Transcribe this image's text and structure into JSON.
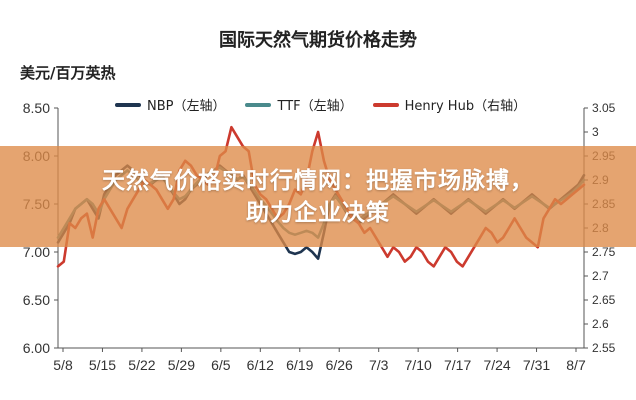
{
  "chart_data": {
    "type": "line",
    "title": "国际天然气期货价格走势",
    "ylabel": "美元/百万英热",
    "x_ticks": [
      "5/8",
      "5/15",
      "5/22",
      "5/29",
      "6/5",
      "6/12",
      "6/19",
      "6/26",
      "7/3",
      "7/10",
      "7/17",
      "7/24",
      "7/31",
      "8/7"
    ],
    "ylim_left": [
      6.0,
      8.5
    ],
    "ylim_right": [
      2.55,
      3.05
    ],
    "y_ticks_left": [
      "8.50",
      "8.00",
      "7.50",
      "7.00",
      "6.50",
      "6.00"
    ],
    "y_ticks_right": [
      "3.05",
      "3",
      "2.95",
      "2.9",
      "2.85",
      "2.8",
      "2.75",
      "2.7",
      "2.65",
      "2.6",
      "2.55"
    ],
    "grid": false,
    "legend_position": "top",
    "series": [
      {
        "name": "NBP（左轴）",
        "axis": "left",
        "color": "#1f3550",
        "x": [
          0,
          1,
          2,
          3,
          4,
          5,
          6,
          7,
          8,
          9,
          10,
          11,
          12,
          13,
          14,
          15,
          16,
          17,
          18,
          19,
          20,
          21,
          22,
          23,
          24,
          25,
          26,
          27,
          28,
          29,
          30,
          31,
          32,
          33,
          34,
          35,
          36,
          37,
          38,
          39,
          40,
          41,
          42,
          43,
          44,
          45,
          46,
          47,
          48,
          49,
          50,
          51,
          52,
          53,
          54,
          55,
          56,
          57,
          58,
          59,
          60,
          61,
          62,
          63,
          64,
          65,
          66,
          67,
          68,
          69,
          70,
          71,
          72,
          73,
          74,
          75,
          76,
          77,
          78,
          79,
          80,
          81,
          82,
          83,
          84,
          85,
          86,
          87,
          88,
          89,
          90,
          91
        ],
        "values": [
          7.1,
          7.2,
          7.3,
          7.45,
          7.5,
          7.55,
          7.45,
          7.35,
          7.6,
          7.7,
          7.8,
          7.85,
          7.9,
          7.85,
          7.8,
          7.75,
          7.7,
          7.75,
          7.8,
          7.7,
          7.6,
          7.5,
          7.55,
          7.65,
          7.7,
          7.75,
          7.8,
          7.85,
          7.9,
          7.85,
          7.8,
          7.75,
          7.8,
          7.7,
          7.6,
          7.5,
          7.4,
          7.3,
          7.2,
          7.1,
          7.0,
          6.98,
          7.0,
          7.05,
          7.0,
          6.93,
          7.2,
          7.5,
          7.6,
          7.5,
          7.4,
          7.35,
          7.3,
          7.35,
          7.4,
          7.45,
          7.5,
          7.55,
          7.6,
          7.55,
          7.5,
          7.45,
          7.4,
          7.45,
          7.5,
          7.55,
          7.5,
          7.45,
          7.4,
          7.45,
          7.5,
          7.55,
          7.5,
          7.45,
          7.4,
          7.45,
          7.5,
          7.55,
          7.5,
          7.45,
          7.5,
          7.55,
          7.6,
          7.55,
          7.5,
          7.45,
          7.5,
          7.55,
          7.6,
          7.65,
          7.7,
          7.8
        ]
      },
      {
        "name": "TTF（左轴）",
        "axis": "left",
        "color": "#4a8a8c",
        "x": [
          0,
          1,
          2,
          3,
          4,
          5,
          6,
          7,
          8,
          9,
          10,
          11,
          12,
          13,
          14,
          15,
          16,
          17,
          18,
          19,
          20,
          21,
          22,
          23,
          24,
          25,
          26,
          27,
          28,
          29,
          30,
          31,
          32,
          33,
          34,
          35,
          36,
          37,
          38,
          39,
          40,
          41,
          42,
          43,
          44,
          45,
          46,
          47,
          48,
          49,
          50,
          51,
          52,
          53,
          54,
          55,
          56,
          57,
          58,
          59,
          60,
          61,
          62,
          63,
          64,
          65,
          66,
          67,
          68,
          69,
          70,
          71,
          72,
          73,
          74,
          75,
          76,
          77,
          78,
          79,
          80,
          81,
          82,
          83,
          84,
          85,
          86,
          87,
          88,
          89,
          90,
          91
        ],
        "values": [
          7.15,
          7.25,
          7.35,
          7.45,
          7.5,
          7.55,
          7.5,
          7.4,
          7.55,
          7.65,
          7.75,
          7.8,
          7.85,
          7.8,
          7.75,
          7.7,
          7.72,
          7.75,
          7.78,
          7.7,
          7.62,
          7.55,
          7.58,
          7.65,
          7.72,
          7.78,
          7.82,
          7.85,
          7.88,
          7.84,
          7.8,
          7.76,
          7.78,
          7.72,
          7.64,
          7.55,
          7.48,
          7.4,
          7.32,
          7.25,
          7.2,
          7.18,
          7.2,
          7.22,
          7.2,
          7.15,
          7.3,
          7.5,
          7.58,
          7.5,
          7.42,
          7.38,
          7.34,
          7.38,
          7.42,
          7.46,
          7.5,
          7.54,
          7.58,
          7.54,
          7.5,
          7.46,
          7.42,
          7.46,
          7.5,
          7.54,
          7.5,
          7.46,
          7.42,
          7.46,
          7.5,
          7.54,
          7.5,
          7.46,
          7.42,
          7.46,
          7.5,
          7.54,
          7.5,
          7.46,
          7.5,
          7.54,
          7.58,
          7.54,
          7.5,
          7.46,
          7.5,
          7.54,
          7.58,
          7.62,
          7.68,
          7.75
        ]
      },
      {
        "name": "Henry Hub（右轴）",
        "axis": "right",
        "color": "#cc3a2e",
        "x": [
          0,
          1,
          2,
          3,
          4,
          5,
          6,
          7,
          8,
          9,
          10,
          11,
          12,
          13,
          14,
          15,
          16,
          17,
          18,
          19,
          20,
          21,
          22,
          23,
          24,
          25,
          26,
          27,
          28,
          29,
          30,
          31,
          32,
          33,
          34,
          35,
          36,
          37,
          38,
          39,
          40,
          41,
          42,
          43,
          44,
          45,
          46,
          47,
          48,
          49,
          50,
          51,
          52,
          53,
          54,
          55,
          56,
          57,
          58,
          59,
          60,
          61,
          62,
          63,
          64,
          65,
          66,
          67,
          68,
          69,
          70,
          71,
          72,
          73,
          74,
          75,
          76,
          77,
          78,
          79,
          80,
          81,
          82,
          83,
          84,
          85,
          86,
          87,
          88,
          89,
          90,
          91
        ],
        "values": [
          2.72,
          2.73,
          2.81,
          2.8,
          2.82,
          2.83,
          2.78,
          2.84,
          2.86,
          2.84,
          2.82,
          2.8,
          2.84,
          2.86,
          2.88,
          2.9,
          2.89,
          2.88,
          2.86,
          2.84,
          2.86,
          2.92,
          2.94,
          2.93,
          2.91,
          2.9,
          2.89,
          2.9,
          2.95,
          2.96,
          3.01,
          2.99,
          2.97,
          2.96,
          2.89,
          2.87,
          2.86,
          2.84,
          2.82,
          2.83,
          2.85,
          2.88,
          2.87,
          2.9,
          2.96,
          3.0,
          2.94,
          2.9,
          2.88,
          2.86,
          2.84,
          2.82,
          2.81,
          2.79,
          2.8,
          2.78,
          2.76,
          2.74,
          2.76,
          2.75,
          2.73,
          2.74,
          2.76,
          2.75,
          2.73,
          2.72,
          2.74,
          2.76,
          2.75,
          2.73,
          2.72,
          2.74,
          2.76,
          2.78,
          2.8,
          2.79,
          2.77,
          2.78,
          2.8,
          2.82,
          2.8,
          2.78,
          2.77,
          2.76,
          2.82,
          2.84,
          2.86,
          2.85,
          2.86,
          2.87,
          2.88,
          2.89
        ]
      }
    ]
  },
  "banner": {
    "line1": "天然气价格实时行情网：把握市场脉搏，",
    "line2": "助力企业决策"
  }
}
